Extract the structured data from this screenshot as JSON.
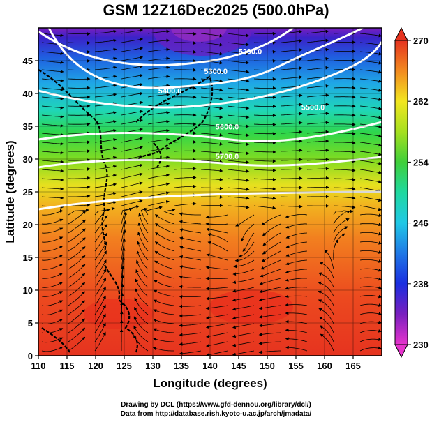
{
  "title": "GSM 12Z16Dec2025 (500.0hPa)",
  "x_axis": {
    "label": "Longitude (degrees)",
    "min": 110,
    "max": 170,
    "ticks": [
      "110",
      "115",
      "120",
      "125",
      "130",
      "135",
      "140",
      "145",
      "150",
      "155",
      "160",
      "165"
    ]
  },
  "y_axis": {
    "label": "Latitude  (degrees)",
    "min": 0,
    "max": 50,
    "ticks": [
      "0",
      "5",
      "10",
      "15",
      "20",
      "25",
      "30",
      "35",
      "40",
      "45"
    ]
  },
  "colorbar": {
    "min": 230,
    "max": 270,
    "labels": [
      "270",
      "262",
      "254",
      "246",
      "238",
      "230"
    ],
    "stops": [
      {
        "v": 230,
        "c": "#e633cc"
      },
      {
        "v": 234,
        "c": "#7a1fbf"
      },
      {
        "v": 238,
        "c": "#1a2ee0"
      },
      {
        "v": 242,
        "c": "#1f78e6"
      },
      {
        "v": 246,
        "c": "#1fc8e6"
      },
      {
        "v": 250,
        "c": "#1fd9a0"
      },
      {
        "v": 254,
        "c": "#3fcf3a"
      },
      {
        "v": 258,
        "c": "#a6e01f"
      },
      {
        "v": 262,
        "c": "#f2e61f"
      },
      {
        "v": 266,
        "c": "#f28a1f"
      },
      {
        "v": 270,
        "c": "#e6331f"
      }
    ]
  },
  "contour_labels": [
    {
      "text": "5200.0",
      "lon": 147,
      "lat": 46
    },
    {
      "text": "5300.0",
      "lon": 141,
      "lat": 43
    },
    {
      "text": "5400.0",
      "lon": 133,
      "lat": 40
    },
    {
      "text": "5500.0",
      "lon": 158,
      "lat": 37.5
    },
    {
      "text": "5600.0",
      "lon": 143,
      "lat": 34.5
    },
    {
      "text": "5700.0",
      "lon": 143,
      "lat": 30
    }
  ],
  "credits": {
    "line1": "Drawing by DCL (https://www.gfd-dennou.org/library/dcl/)",
    "line2": "Data from http://database.rish.kyoto-u.ac.jp/arch/jmadata/"
  }
}
